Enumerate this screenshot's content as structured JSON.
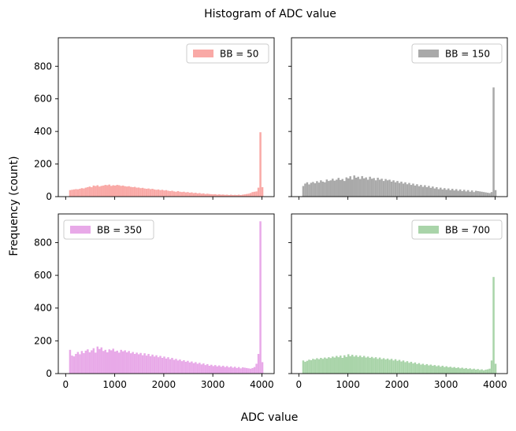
{
  "figure": {
    "suptitle": "Histogram of ADC value",
    "xlabel": "ADC value",
    "ylabel": "Frequency (count)"
  },
  "chart_data": [
    {
      "type": "bar",
      "legend": "BB = 50",
      "legend_position": "upper right",
      "color": "#f9a9a6",
      "xlim": [
        -150,
        4250
      ],
      "ylim": [
        0,
        975
      ],
      "xticks": [
        0,
        1000,
        2000,
        3000,
        4000
      ],
      "yticks": [
        0,
        200,
        400,
        600,
        800
      ],
      "show_xticklabels": false,
      "show_yticklabels": true,
      "bin_start": 70,
      "bin_width": 40,
      "values": [
        40,
        42,
        44,
        46,
        45,
        48,
        52,
        50,
        55,
        58,
        62,
        58,
        68,
        65,
        70,
        62,
        66,
        68,
        72,
        70,
        74,
        66,
        70,
        68,
        72,
        70,
        66,
        68,
        64,
        62,
        64,
        60,
        58,
        60,
        55,
        56,
        52,
        54,
        50,
        48,
        50,
        46,
        48,
        44,
        42,
        44,
        40,
        42,
        38,
        40,
        36,
        34,
        36,
        32,
        30,
        34,
        30,
        28,
        30,
        26,
        28,
        24,
        26,
        22,
        24,
        20,
        22,
        18,
        20,
        16,
        18,
        16,
        15,
        14,
        15,
        12,
        14,
        12,
        13,
        11,
        12,
        10,
        12,
        10,
        11,
        10,
        12,
        10,
        12,
        14,
        16,
        18,
        22,
        28,
        30,
        32,
        55,
        395,
        58,
        0
      ]
    },
    {
      "type": "bar",
      "legend": "BB = 150",
      "legend_position": "upper right",
      "color": "#a9a9a9",
      "xlim": [
        -150,
        4250
      ],
      "ylim": [
        0,
        975
      ],
      "xticks": [
        0,
        1000,
        2000,
        3000,
        4000
      ],
      "yticks": [
        0,
        200,
        400,
        600,
        800
      ],
      "show_xticklabels": false,
      "show_yticklabels": false,
      "bin_start": 70,
      "bin_width": 40,
      "values": [
        65,
        80,
        88,
        75,
        85,
        90,
        82,
        95,
        86,
        100,
        92,
        88,
        105,
        96,
        100,
        110,
        98,
        104,
        115,
        102,
        108,
        96,
        118,
        112,
        125,
        105,
        130,
        116,
        122,
        108,
        126,
        112,
        118,
        104,
        122,
        110,
        114,
        100,
        116,
        104,
        110,
        96,
        108,
        100,
        104,
        92,
        100,
        88,
        96,
        84,
        92,
        80,
        88,
        76,
        84,
        72,
        80,
        68,
        76,
        64,
        72,
        60,
        70,
        58,
        66,
        54,
        62,
        50,
        58,
        46,
        55,
        44,
        52,
        42,
        50,
        40,
        48,
        38,
        46,
        36,
        44,
        34,
        42,
        32,
        40,
        30,
        38,
        28,
        36,
        34,
        32,
        30,
        28,
        26,
        24,
        22,
        28,
        670,
        40,
        0
      ]
    },
    {
      "type": "bar",
      "legend": "BB = 350",
      "legend_position": "upper left",
      "color": "#e8a9e8",
      "xlim": [
        -150,
        4250
      ],
      "ylim": [
        0,
        975
      ],
      "xticks": [
        0,
        1000,
        2000,
        3000,
        4000
      ],
      "yticks": [
        0,
        200,
        400,
        600,
        800
      ],
      "show_xticklabels": true,
      "show_yticklabels": true,
      "bin_start": 70,
      "bin_width": 40,
      "values": [
        145,
        110,
        105,
        120,
        132,
        118,
        138,
        125,
        140,
        148,
        130,
        142,
        155,
        128,
        165,
        150,
        160,
        138,
        145,
        130,
        148,
        142,
        152,
        135,
        140,
        128,
        145,
        136,
        142,
        130,
        138,
        124,
        132,
        120,
        128,
        118,
        126,
        112,
        124,
        110,
        120,
        106,
        116,
        104,
        112,
        100,
        108,
        96,
        104,
        92,
        100,
        88,
        96,
        84,
        90,
        80,
        86,
        76,
        82,
        72,
        78,
        68,
        74,
        64,
        70,
        60,
        66,
        56,
        62,
        52,
        58,
        48,
        54,
        46,
        52,
        44,
        50,
        42,
        48,
        40,
        46,
        38,
        44,
        36,
        42,
        34,
        40,
        32,
        38,
        36,
        34,
        32,
        30,
        34,
        40,
        60,
        120,
        930,
        70,
        0
      ]
    },
    {
      "type": "bar",
      "legend": "BB = 700",
      "legend_position": "upper right",
      "color": "#a9d4a9",
      "xlim": [
        -150,
        4250
      ],
      "ylim": [
        0,
        975
      ],
      "xticks": [
        0,
        1000,
        2000,
        3000,
        4000
      ],
      "yticks": [
        0,
        200,
        400,
        600,
        800
      ],
      "show_xticklabels": true,
      "show_yticklabels": false,
      "bin_start": 70,
      "bin_width": 40,
      "values": [
        80,
        72,
        78,
        85,
        82,
        90,
        86,
        94,
        88,
        96,
        90,
        98,
        92,
        100,
        95,
        104,
        98,
        108,
        100,
        110,
        96,
        112,
        102,
        118,
        106,
        115,
        104,
        112,
        102,
        110,
        100,
        108,
        98,
        104,
        96,
        102,
        94,
        100,
        90,
        98,
        88,
        94,
        86,
        92,
        84,
        90,
        80,
        88,
        78,
        84,
        74,
        80,
        70,
        76,
        66,
        72,
        62,
        68,
        58,
        64,
        55,
        60,
        52,
        58,
        50,
        55,
        48,
        52,
        45,
        50,
        42,
        48,
        40,
        45,
        38,
        42,
        36,
        40,
        34,
        38,
        32,
        36,
        30,
        34,
        28,
        32,
        26,
        30,
        24,
        28,
        22,
        26,
        20,
        24,
        26,
        30,
        80,
        590,
        60,
        0
      ]
    }
  ]
}
